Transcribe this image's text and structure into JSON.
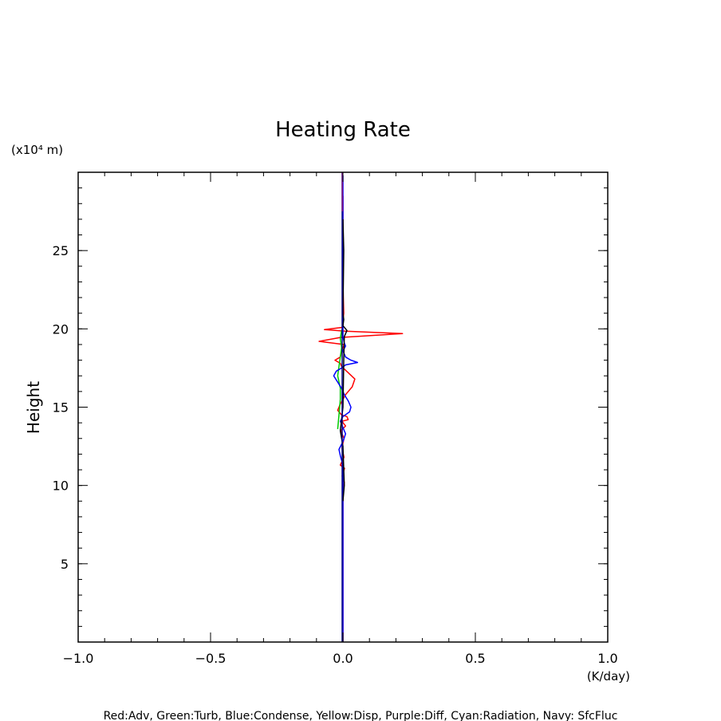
{
  "chart_data": {
    "type": "line",
    "title": "Heating Rate",
    "ylabel": "Height",
    "yunit": "(x10⁴ m)",
    "xunit": "(K/day)",
    "xlim": [
      -1.0,
      1.0
    ],
    "ylim": [
      0,
      30
    ],
    "xticks": [
      "−1.0",
      "−0.5",
      "0.0",
      "0.5",
      "1.0"
    ],
    "xtick_values": [
      -1.0,
      -0.5,
      0.0,
      0.5,
      1.0
    ],
    "yticks": [
      "5",
      "10",
      "15",
      "20",
      "25"
    ],
    "ytick_values": [
      5,
      10,
      15,
      20,
      25
    ],
    "grid": false,
    "legend_text": "Red:Adv, Green:Turb, Blue:Condense, Yellow:Disp, Purple:Diff, Cyan:Radiation, Navy: SfcFluc",
    "series": [
      {
        "color": "#ff0000",
        "points": [
          [
            0,
            0
          ],
          [
            0,
            9.5
          ],
          [
            0.005,
            10.2
          ],
          [
            -0.003,
            10.6
          ],
          [
            0.006,
            11.1
          ],
          [
            -0.01,
            11.3
          ],
          [
            0.004,
            11.8
          ],
          [
            -0.004,
            12.4
          ],
          [
            0.004,
            13.0
          ],
          [
            -0.008,
            13.5
          ],
          [
            0.01,
            13.8
          ],
          [
            -0.004,
            14.1
          ],
          [
            0.02,
            14.2
          ],
          [
            0.015,
            14.4
          ],
          [
            -0.005,
            14.5
          ],
          [
            -0.02,
            14.8
          ],
          [
            -0.01,
            15.2
          ],
          [
            0.01,
            15.8
          ],
          [
            0.035,
            16.3
          ],
          [
            0.045,
            16.8
          ],
          [
            0.02,
            17.2
          ],
          [
            -0.005,
            17.6
          ],
          [
            -0.01,
            17.8
          ],
          [
            -0.03,
            18.0
          ],
          [
            -0.01,
            18.2
          ],
          [
            -0.005,
            18.6
          ],
          [
            0.005,
            19.0
          ],
          [
            -0.09,
            19.2
          ],
          [
            -0.01,
            19.45
          ],
          [
            0.225,
            19.7
          ],
          [
            0.01,
            19.85
          ],
          [
            -0.07,
            19.95
          ],
          [
            0.0,
            20.1
          ],
          [
            0.0,
            20.5
          ],
          [
            0.003,
            21.0
          ],
          [
            0.0,
            23.0
          ],
          [
            0.0,
            28.5
          ]
        ]
      },
      {
        "color": "#00cc00",
        "points": [
          [
            -0.02,
            13.6
          ],
          [
            -0.015,
            14.5
          ],
          [
            -0.01,
            15.5
          ],
          [
            -0.01,
            16.2
          ],
          [
            -0.02,
            17.0
          ],
          [
            -0.015,
            17.6
          ],
          [
            -0.01,
            18.2
          ],
          [
            -0.005,
            18.8
          ],
          [
            -0.01,
            19.4
          ],
          [
            -0.005,
            19.9
          ],
          [
            0.0,
            20.0
          ]
        ]
      },
      {
        "color": "#0000ff",
        "points": [
          [
            0,
            0
          ],
          [
            0,
            11.3
          ],
          [
            -0.01,
            11.9
          ],
          [
            -0.015,
            12.3
          ],
          [
            0.0,
            12.8
          ],
          [
            0.01,
            13.3
          ],
          [
            0.0,
            13.7
          ],
          [
            -0.01,
            14.1
          ],
          [
            0.0,
            14.4
          ],
          [
            0.025,
            14.7
          ],
          [
            0.03,
            15.0
          ],
          [
            0.02,
            15.4
          ],
          [
            0.005,
            15.8
          ],
          [
            -0.005,
            16.2
          ],
          [
            -0.02,
            16.6
          ],
          [
            -0.035,
            17.0
          ],
          [
            -0.025,
            17.3
          ],
          [
            -0.005,
            17.5
          ],
          [
            0.01,
            17.7
          ],
          [
            0.055,
            17.85
          ],
          [
            0.03,
            18.0
          ],
          [
            0.01,
            18.2
          ],
          [
            0.0,
            18.6
          ],
          [
            0.01,
            18.9
          ],
          [
            0.005,
            19.1
          ],
          [
            0.0,
            19.5
          ],
          [
            0.0,
            22.0
          ],
          [
            0.0,
            29.8
          ]
        ]
      },
      {
        "color": "#000000",
        "points": [
          [
            0,
            9.0
          ],
          [
            0.005,
            10.0
          ],
          [
            0.0,
            12.5
          ],
          [
            -0.01,
            13.5
          ],
          [
            0.0,
            15.0
          ],
          [
            0.002,
            17.0
          ],
          [
            0.003,
            18.0
          ],
          [
            0.005,
            19.5
          ],
          [
            0.015,
            19.9
          ],
          [
            0.0,
            20.2
          ],
          [
            0.003,
            20.6
          ],
          [
            0.0,
            21.0
          ],
          [
            0.003,
            25.0
          ],
          [
            0.0,
            27.0
          ]
        ]
      },
      {
        "color": "#000080",
        "points": [
          [
            -0.003,
            0.0
          ],
          [
            -0.003,
            30.0
          ]
        ]
      },
      {
        "color": "#800080",
        "points": [
          [
            -0.002,
            27.5
          ],
          [
            -0.002,
            30.0
          ]
        ]
      }
    ]
  }
}
